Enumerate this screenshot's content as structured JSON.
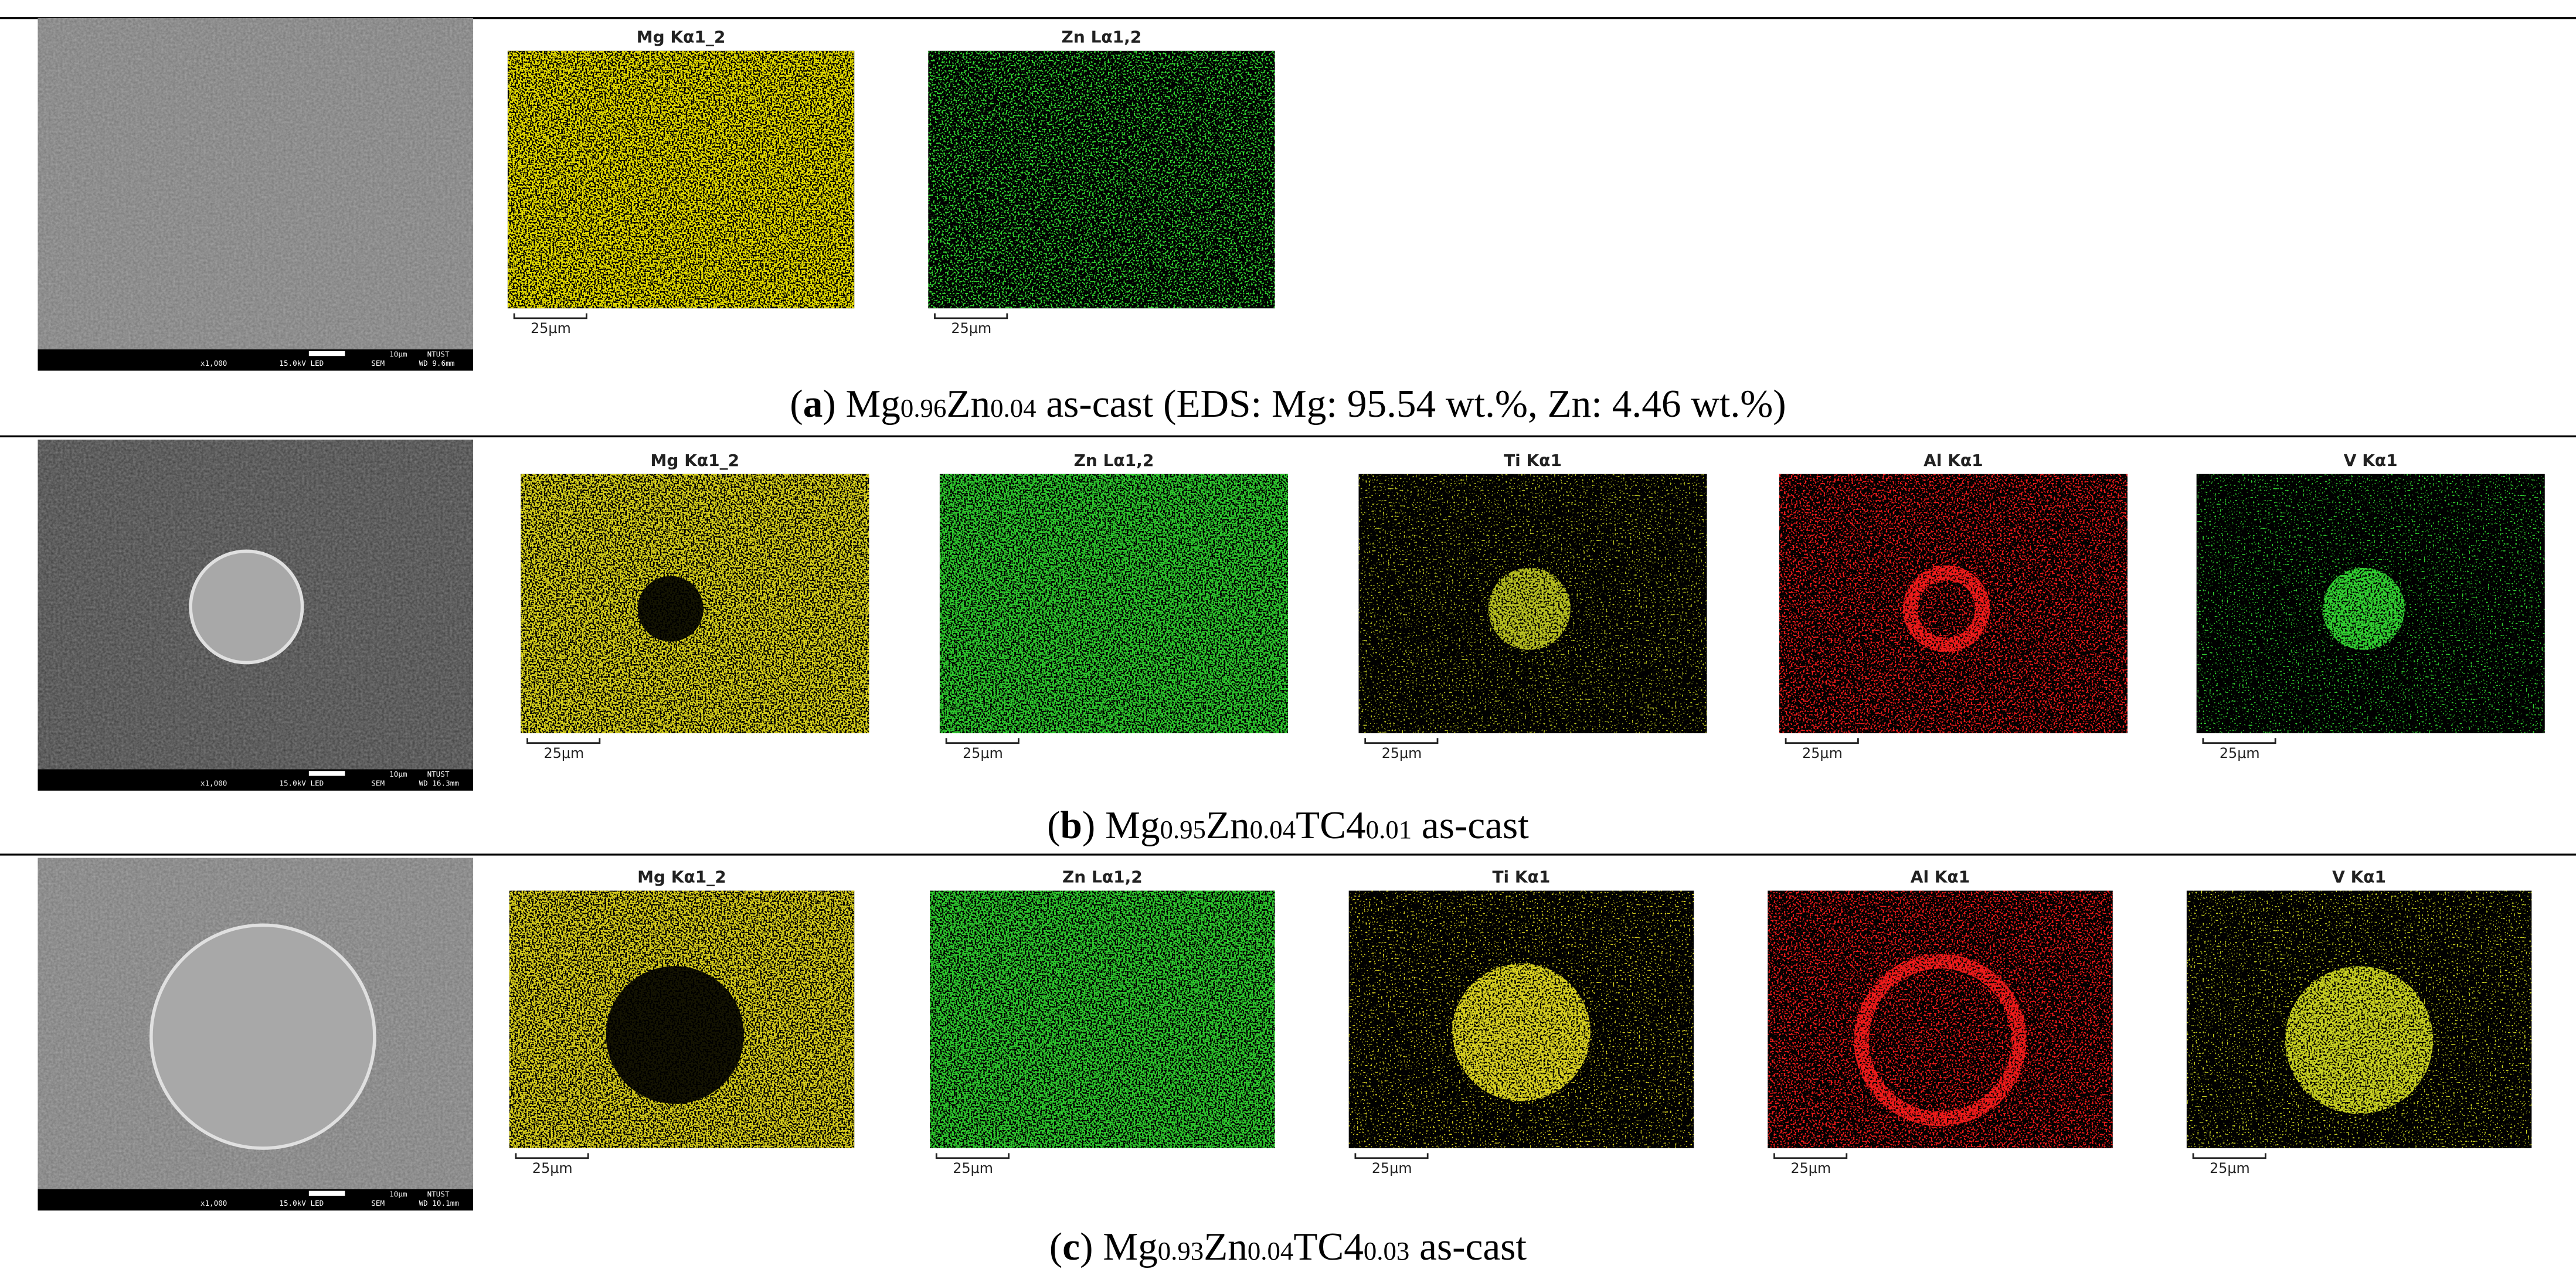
{
  "panels": [
    {
      "sem": {
        "info": [
          "x1,000",
          "15.0kV LED",
          "SEM",
          "WD 9.6mm"
        ],
        "scale": "10μm",
        "lab": "NTUST"
      },
      "maps": [
        {
          "title": "Mg Kα1_2",
          "color": "#e3da00",
          "scale": "25μm"
        },
        {
          "title": "Zn Lα1,2",
          "color": "#33d633",
          "scale": "25μm"
        }
      ],
      "caption": [
        {
          "text": "("
        },
        {
          "text": "a",
          "style": "bold"
        },
        {
          "text": ") Mg"
        },
        {
          "text": "0.96",
          "style": "sub"
        },
        {
          "text": "Zn"
        },
        {
          "text": "0.04",
          "style": "sub"
        },
        {
          "text": " as-cast (EDS: Mg: 95.54 wt.%, Zn: 4.46 wt.%)"
        }
      ]
    },
    {
      "sem": {
        "info": [
          "x1,000",
          "15.0kV LED",
          "SEM",
          "WD 16.3mm"
        ],
        "scale": "10μm",
        "lab": "NTUST"
      },
      "maps": [
        {
          "title": "Mg Kα1_2",
          "color": "#d6cf1a",
          "scale": "25μm"
        },
        {
          "title": "Zn Lα1,2",
          "color": "#2ec82e",
          "scale": "25μm"
        },
        {
          "title": "Ti Kα1",
          "color": "#b8c020",
          "scale": "25μm"
        },
        {
          "title": "Al Kα1",
          "color": "#f01a1a",
          "scale": "25μm"
        },
        {
          "title": "V Kα1",
          "color": "#30d030",
          "scale": "25μm"
        }
      ],
      "caption": [
        {
          "text": "("
        },
        {
          "text": "b",
          "style": "bold"
        },
        {
          "text": ") Mg"
        },
        {
          "text": "0.95",
          "style": "sub"
        },
        {
          "text": "Zn"
        },
        {
          "text": "0.04",
          "style": "sub"
        },
        {
          "text": "TC4"
        },
        {
          "text": "0.01",
          "style": "sub"
        },
        {
          "text": " as-cast"
        }
      ]
    },
    {
      "sem": {
        "info": [
          "x1,000",
          "15.0kV LED",
          "SEM",
          "WD 10.1mm"
        ],
        "scale": "10μm",
        "lab": "NTUST"
      },
      "maps": [
        {
          "title": "Mg Kα1_2",
          "color": "#d6cc1e",
          "scale": "25μm"
        },
        {
          "title": "Zn Lα1,2",
          "color": "#2ec82e",
          "scale": "25μm"
        },
        {
          "title": "Ti Kα1",
          "color": "#d8d020",
          "scale": "25μm"
        },
        {
          "title": "Al Kα1",
          "color": "#f01a1a",
          "scale": "25μm"
        },
        {
          "title": "V Kα1",
          "color": "#c8d020",
          "scale": "25μm"
        }
      ],
      "caption": [
        {
          "text": "("
        },
        {
          "text": "c",
          "style": "bold"
        },
        {
          "text": ") Mg"
        },
        {
          "text": "0.93",
          "style": "sub"
        },
        {
          "text": "Zn"
        },
        {
          "text": "0.04",
          "style": "sub"
        },
        {
          "text": "TC4"
        },
        {
          "text": "0.03",
          "style": "sub"
        },
        {
          "text": " as-cast"
        }
      ]
    }
  ]
}
